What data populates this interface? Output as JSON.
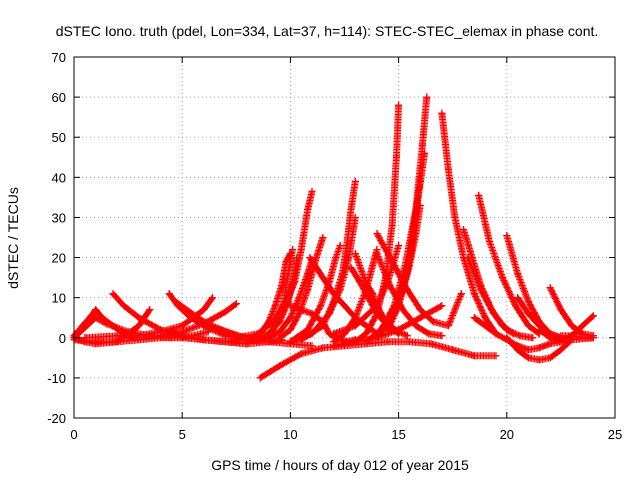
{
  "chart_data": {
    "type": "scatter",
    "title": "dSTEC Iono. truth (pdel, Lon=334, Lat=37, h=114): STEC-STEC_elemax in phase cont.",
    "xlabel": "GPS time / hours of day 012 of year 2015",
    "ylabel": "dSTEC  / TECUs",
    "xlim": [
      0,
      25
    ],
    "ylim": [
      -20,
      70
    ],
    "xticks": [
      0,
      5,
      10,
      15,
      20,
      25
    ],
    "yticks": [
      -20,
      -10,
      0,
      10,
      20,
      30,
      40,
      50,
      60,
      70
    ],
    "grid": true,
    "marker": "plus",
    "series_color": "#ff0000",
    "series": [
      {
        "x": [
          0.0,
          0.4,
          0.8,
          1.0,
          1.3,
          1.8,
          2.3,
          2.8
        ],
        "y": [
          0.5,
          3.0,
          5.5,
          7.0,
          5.0,
          3.0,
          1.0,
          0.0
        ]
      },
      {
        "x": [
          0.0,
          0.5,
          1.0,
          1.5,
          2.5,
          3.5,
          4.5,
          5.5,
          6.2
        ],
        "y": [
          0.0,
          2.5,
          5.0,
          3.5,
          1.5,
          0.5,
          0.0,
          0.5,
          1.5
        ]
      },
      {
        "x": [
          0.0,
          0.5,
          1.0,
          2.0,
          3.0,
          3.5
        ],
        "y": [
          0.0,
          -1.0,
          -1.5,
          -1.0,
          3.0,
          7.0
        ]
      },
      {
        "x": [
          1.8,
          2.3,
          3.0,
          4.0,
          5.0,
          6.0,
          7.0,
          8.0,
          9.0,
          9.6
        ],
        "y": [
          11.0,
          8.0,
          5.0,
          2.0,
          0.5,
          -0.5,
          -1.0,
          -1.5,
          -1.0,
          -0.5
        ]
      },
      {
        "x": [
          0.0,
          1.0,
          2.0,
          3.0,
          4.0,
          5.0,
          6.0,
          7.0,
          8.0
        ],
        "y": [
          -0.5,
          -1.0,
          -1.0,
          -0.5,
          0.0,
          0.0,
          -0.5,
          -1.0,
          -1.5
        ]
      },
      {
        "x": [
          0.5,
          2.0,
          3.0,
          4.0,
          5.0,
          6.0,
          7.0,
          7.5
        ],
        "y": [
          0.0,
          0.5,
          0.0,
          0.5,
          1.5,
          3.5,
          6.5,
          8.5
        ]
      },
      {
        "x": [
          4.4,
          4.8,
          5.4,
          6.0,
          7.0,
          8.0,
          9.0,
          10.0,
          11.0
        ],
        "y": [
          11.0,
          8.0,
          5.0,
          3.0,
          0.5,
          -0.5,
          -1.0,
          -1.5,
          -2.0
        ]
      },
      {
        "x": [
          4.7,
          5.2,
          6.0,
          6.8,
          7.5
        ],
        "y": [
          9.0,
          7.0,
          4.0,
          2.0,
          0.5
        ]
      },
      {
        "x": [
          3.0,
          4.0,
          5.0,
          5.5,
          6.0,
          6.4
        ],
        "y": [
          0.5,
          1.5,
          3.0,
          5.0,
          7.0,
          10.0
        ]
      },
      {
        "x": [
          6.0,
          6.8,
          7.6,
          8.3,
          8.8,
          9.2,
          9.6,
          10.2
        ],
        "y": [
          3.0,
          2.0,
          0.5,
          -0.5,
          0.0,
          2.0,
          6.0,
          14.0
        ]
      },
      {
        "x": [
          7.0,
          8.0,
          8.6,
          9.0,
          9.3,
          9.6,
          9.8,
          10.0
        ],
        "y": [
          -1.0,
          -0.5,
          1.0,
          4.0,
          8.0,
          13.0,
          19.0,
          21.0
        ]
      },
      {
        "x": [
          7.5,
          8.5,
          9.2,
          9.8,
          10.2,
          10.5,
          10.8,
          11.0
        ],
        "y": [
          0.0,
          1.0,
          4.0,
          9.0,
          14.0,
          22.0,
          32.0,
          36.5
        ]
      },
      {
        "x": [
          8.0,
          9.0,
          9.5,
          9.9,
          10.2,
          10.3
        ],
        "y": [
          -1.0,
          1.0,
          4.0,
          9.0,
          16.0,
          20.0
        ]
      },
      {
        "x": [
          8.5,
          9.0,
          9.4,
          9.7,
          9.9,
          10.1
        ],
        "y": [
          -1.0,
          0.5,
          4.0,
          9.0,
          16.0,
          22.0
        ]
      },
      {
        "x": [
          9.0,
          9.5,
          10.0,
          10.4,
          10.8,
          11.0
        ],
        "y": [
          0.0,
          1.5,
          5.0,
          10.0,
          16.0,
          19.5
        ]
      },
      {
        "x": [
          9.5,
          10.0,
          10.4,
          10.8,
          11.2,
          11.5
        ],
        "y": [
          0.0,
          2.0,
          6.0,
          12.0,
          20.0,
          25.0
        ]
      },
      {
        "x": [
          10.0,
          10.8,
          11.4,
          11.8,
          12.1,
          12.3
        ],
        "y": [
          -1.0,
          2.0,
          8.0,
          14.0,
          20.0,
          23.0
        ]
      },
      {
        "x": [
          10.0,
          11.0,
          11.8,
          12.3,
          12.7,
          13.0
        ],
        "y": [
          -1.0,
          1.0,
          6.0,
          12.0,
          20.0,
          30.0
        ]
      },
      {
        "x": [
          10.5,
          11.5,
          12.0,
          12.4,
          12.6,
          12.8,
          13.0
        ],
        "y": [
          -0.5,
          3.0,
          9.0,
          16.0,
          23.0,
          32.0,
          39.0
        ]
      },
      {
        "x": [
          10.0,
          11.0,
          11.5,
          11.8,
          12.1,
          12.6,
          13.0
        ],
        "y": [
          8.0,
          6.0,
          4.0,
          1.0,
          0.0,
          -1.0,
          -0.5
        ]
      },
      {
        "x": [
          10.9,
          11.5,
          12.0,
          12.5,
          13.0,
          13.5,
          14.0
        ],
        "y": [
          20.0,
          15.0,
          11.0,
          8.0,
          5.0,
          3.0,
          1.0
        ]
      },
      {
        "x": [
          12.8,
          13.2,
          13.6,
          14.0,
          14.5,
          15.0
        ],
        "y": [
          17.5,
          14.0,
          10.0,
          6.0,
          3.0,
          1.0
        ]
      },
      {
        "x": [
          13.5,
          13.8,
          14.0,
          14.3,
          14.6,
          15.0,
          15.4
        ],
        "y": [
          13.5,
          11.0,
          8.0,
          5.0,
          3.0,
          1.5,
          0.5
        ]
      },
      {
        "x": [
          13.0,
          13.4,
          13.8,
          14.2,
          14.6
        ],
        "y": [
          21.0,
          15.0,
          9.0,
          5.0,
          2.5
        ]
      },
      {
        "x": [
          12.0,
          12.5,
          13.0,
          13.5,
          13.8,
          14.0
        ],
        "y": [
          -1.0,
          1.0,
          5.0,
          12.0,
          18.0,
          22.0
        ]
      },
      {
        "x": [
          12.0,
          13.0,
          14.0,
          14.5,
          15.0
        ],
        "y": [
          1.0,
          3.0,
          8.0,
          14.0,
          23.0
        ]
      },
      {
        "x": [
          13.0,
          13.5,
          14.0,
          14.4,
          14.7,
          14.9,
          15.0
        ],
        "y": [
          -1.0,
          1.0,
          6.0,
          15.0,
          28.0,
          45.0,
          58.0
        ]
      },
      {
        "x": [
          13.5,
          14.2,
          14.8,
          15.3,
          15.8,
          16.1,
          16.3
        ],
        "y": [
          -1.0,
          2.0,
          8.0,
          18.0,
          32.0,
          48.0,
          60.0
        ]
      },
      {
        "x": [
          14.0,
          14.6,
          15.2,
          15.6,
          15.9,
          16.2
        ],
        "y": [
          0.0,
          4.0,
          12.0,
          22.0,
          35.0,
          46.0
        ]
      },
      {
        "x": [
          14.0,
          14.8,
          15.4,
          15.7,
          16.0
        ],
        "y": [
          1.0,
          6.0,
          16.0,
          28.0,
          39.0
        ]
      },
      {
        "x": [
          14.5,
          15.0,
          15.5,
          15.8,
          16.0
        ],
        "y": [
          2.0,
          8.0,
          18.0,
          26.0,
          33.0
        ]
      },
      {
        "x": [
          14.0,
          14.8,
          15.4,
          16.0,
          16.6,
          17.3,
          17.9
        ],
        "y": [
          26.0,
          18.0,
          12.0,
          7.0,
          4.0,
          3.0,
          11.0
        ]
      },
      {
        "x": [
          14.0,
          14.6,
          15.2,
          15.8,
          16.4,
          17.0
        ],
        "y": [
          21.0,
          13.0,
          7.0,
          3.0,
          1.0,
          0.5
        ]
      },
      {
        "x": [
          12.0,
          13.0,
          14.0,
          15.0,
          16.0,
          17.0
        ],
        "y": [
          -2.0,
          -1.0,
          0.0,
          2.0,
          5.0,
          8.0
        ]
      },
      {
        "x": [
          17.0,
          17.3,
          17.6,
          18.0,
          18.5,
          19.0,
          19.5
        ],
        "y": [
          56.0,
          42.0,
          30.0,
          20.0,
          11.0,
          5.0,
          1.0
        ]
      },
      {
        "x": [
          18.0,
          18.4,
          18.8,
          19.3,
          19.8,
          20.3
        ],
        "y": [
          27.0,
          20.0,
          13.0,
          7.0,
          3.0,
          1.0
        ]
      },
      {
        "x": [
          18.2,
          18.8,
          19.4,
          20.0,
          20.6,
          21.2
        ],
        "y": [
          20.0,
          12.0,
          6.0,
          2.0,
          0.5,
          0.0
        ]
      },
      {
        "x": [
          18.7,
          19.2,
          19.8,
          20.4,
          21.0,
          21.5
        ],
        "y": [
          35.5,
          24.0,
          15.0,
          8.0,
          3.0,
          1.0
        ]
      },
      {
        "x": [
          20.0,
          20.5,
          21.0,
          21.5,
          22.0,
          22.5
        ],
        "y": [
          25.5,
          16.0,
          9.0,
          4.0,
          1.0,
          0.0
        ]
      },
      {
        "x": [
          18.5,
          19.5,
          20.5,
          21.0,
          21.5,
          22.0,
          23.0,
          24.0
        ],
        "y": [
          5.0,
          1.0,
          -2.0,
          -3.0,
          -2.5,
          -1.5,
          -0.5,
          0.0
        ]
      },
      {
        "x": [
          20.0,
          20.5,
          21.0,
          21.5,
          22.0,
          22.5,
          22.9
        ],
        "y": [
          0.0,
          -3.0,
          -5.0,
          -5.5,
          -5.0,
          -3.0,
          -1.0
        ]
      },
      {
        "x": [
          22.0,
          22.5,
          23.0,
          23.5,
          24.0
        ],
        "y": [
          12.5,
          7.0,
          3.0,
          1.0,
          0.5
        ]
      },
      {
        "x": [
          21.5,
          22.0,
          22.5,
          23.0,
          23.5,
          24.0
        ],
        "y": [
          2.0,
          0.0,
          -1.0,
          0.5,
          3.0,
          5.5
        ]
      },
      {
        "x": [
          20.5,
          21.0,
          21.5,
          22.0,
          22.5
        ],
        "y": [
          10.0,
          6.0,
          3.0,
          1.0,
          0.0
        ]
      },
      {
        "x": [
          22.5,
          23.0,
          23.5,
          24.0
        ],
        "y": [
          0.5,
          0.5,
          0.0,
          0.0
        ]
      },
      {
        "x": [
          8.6,
          9.5,
          10.5,
          11.5,
          12.5,
          13.5,
          14.5,
          15.5,
          16.5,
          17.5,
          18.5,
          19.5
        ],
        "y": [
          -10.0,
          -7.0,
          -4.0,
          -2.5,
          -2.0,
          -1.5,
          -1.0,
          -1.0,
          -1.5,
          -3.0,
          -4.5,
          -4.5
        ]
      }
    ]
  }
}
